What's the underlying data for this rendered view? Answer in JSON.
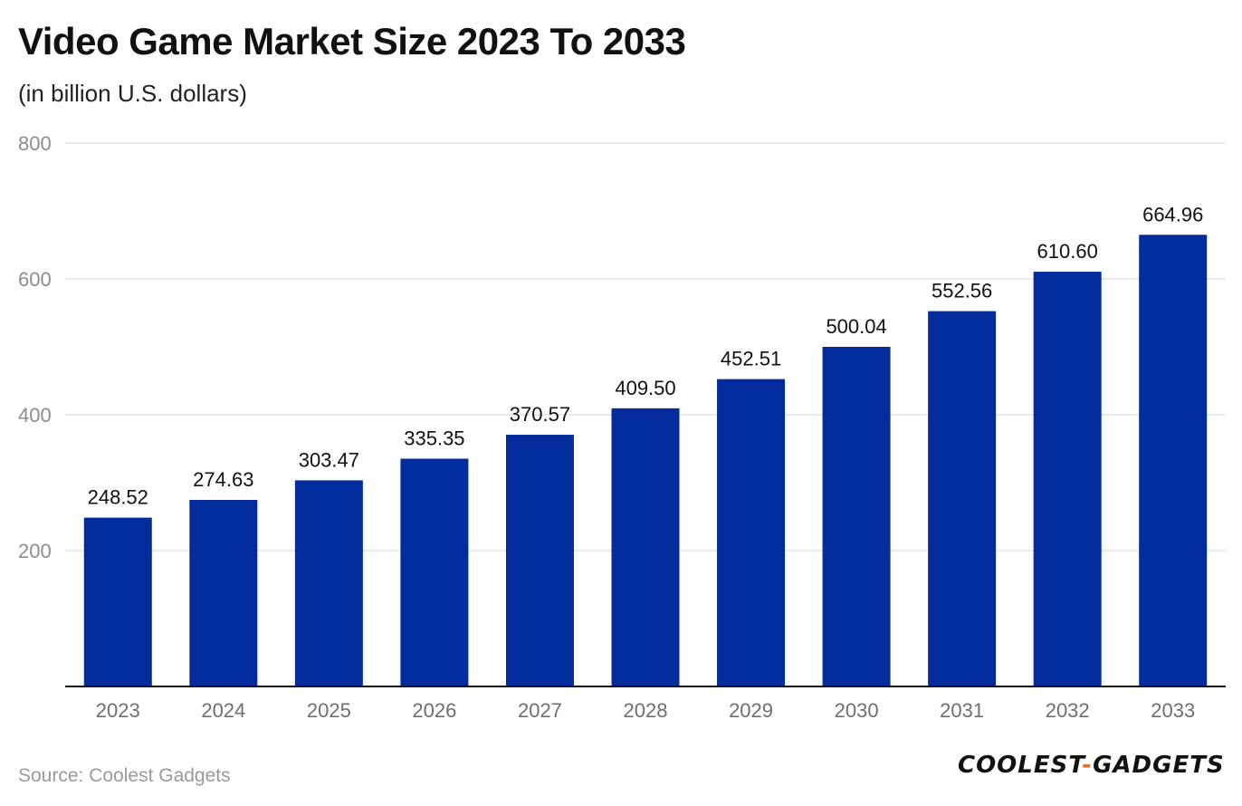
{
  "header": {
    "title": "Video Game Market Size 2023 To 2033",
    "subtitle": "(in billion U.S. dollars)"
  },
  "footer": {
    "source": "Source: Coolest Gadgets",
    "logo_part1": "COOLEST",
    "logo_dash": "-",
    "logo_part2": "GADGETS"
  },
  "colors": {
    "bar": "#022c9c",
    "grid": "#e3e3e3",
    "axis": "#111111",
    "logo_accent": "#e8702a"
  },
  "chart_data": {
    "type": "bar",
    "title": "Video Game Market Size 2023 To 2033",
    "subtitle": "(in billion U.S. dollars)",
    "xlabel": "",
    "ylabel": "",
    "categories": [
      "2023",
      "2024",
      "2025",
      "2026",
      "2027",
      "2028",
      "2029",
      "2030",
      "2031",
      "2032",
      "2033"
    ],
    "values": [
      248.52,
      274.63,
      303.47,
      335.35,
      370.57,
      409.5,
      452.51,
      500.04,
      552.56,
      610.6,
      664.96
    ],
    "value_labels": [
      "248.52",
      "274.63",
      "303.47",
      "335.35",
      "370.57",
      "409.50",
      "452.51",
      "500.04",
      "552.56",
      "610.60",
      "664.96"
    ],
    "ylim": [
      0,
      800
    ],
    "yticks": [
      200,
      400,
      600,
      800
    ],
    "grid": true,
    "legend": "none"
  }
}
